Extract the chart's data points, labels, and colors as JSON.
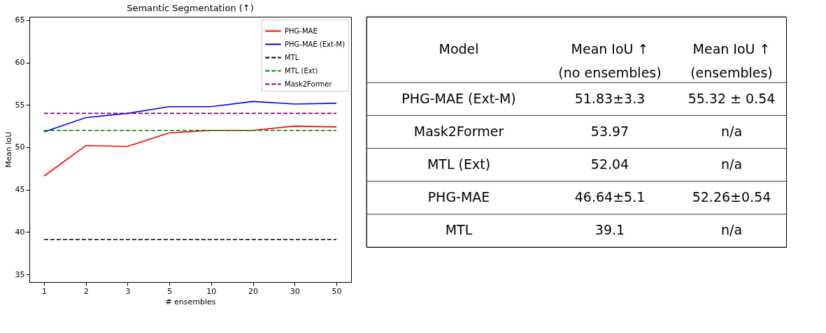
{
  "chart_data": [
    {
      "type": "line",
      "title": "Semantic Segmentation (↑)",
      "xlabel": "# ensembles",
      "ylabel": "Mean IoU",
      "categories": [
        "1",
        "2",
        "3",
        "5",
        "10",
        "20",
        "30",
        "50"
      ],
      "series": [
        {
          "name": "PHG-MAE",
          "color": "#ff0000",
          "line_style": "solid",
          "values": [
            46.6,
            50.2,
            50.1,
            51.7,
            52.0,
            52.0,
            52.5,
            52.4
          ]
        },
        {
          "name": "PHG-MAE (Ext-M)",
          "color": "#0000ff",
          "line_style": "solid",
          "values": [
            51.8,
            53.5,
            54.0,
            54.8,
            54.8,
            55.4,
            55.1,
            55.2
          ]
        },
        {
          "name": "MTL",
          "color": "#000000",
          "line_style": "dashed",
          "values": [
            39.1,
            39.1,
            39.1,
            39.1,
            39.1,
            39.1,
            39.1,
            39.1
          ]
        },
        {
          "name": "MTL (Ext)",
          "color": "#008000",
          "line_style": "dashed",
          "values": [
            52.0,
            52.0,
            52.0,
            52.0,
            52.0,
            52.0,
            52.0,
            52.0
          ]
        },
        {
          "name": "Mask2Former",
          "color": "#800080",
          "line_style": "dashed",
          "values": [
            54.0,
            54.0,
            54.0,
            54.0,
            54.0,
            54.0,
            54.0,
            54.0
          ]
        }
      ],
      "ylim": [
        34.1,
        65.4
      ],
      "yticks": [
        35,
        40,
        45,
        50,
        55,
        60,
        65
      ],
      "grid": false,
      "legend": "top right",
      "marker": "none"
    },
    {
      "type": "other",
      "annotations": [
        "Model",
        "Mean IoU ↑\n(no ensembles)",
        "Mean IoU ↑\n(ensembles)",
        "PHG-MAE (Ext-M)",
        "51.83±3.3",
        "55.32 ± 0.54",
        "Mask2Former",
        "53.97",
        "n/a",
        "MTL (Ext)",
        "52.04",
        "n/a",
        "PHG-MAE",
        "46.64±5.1",
        "52.26±0.54",
        "MTL",
        "39.1",
        "n/a"
      ]
    }
  ]
}
